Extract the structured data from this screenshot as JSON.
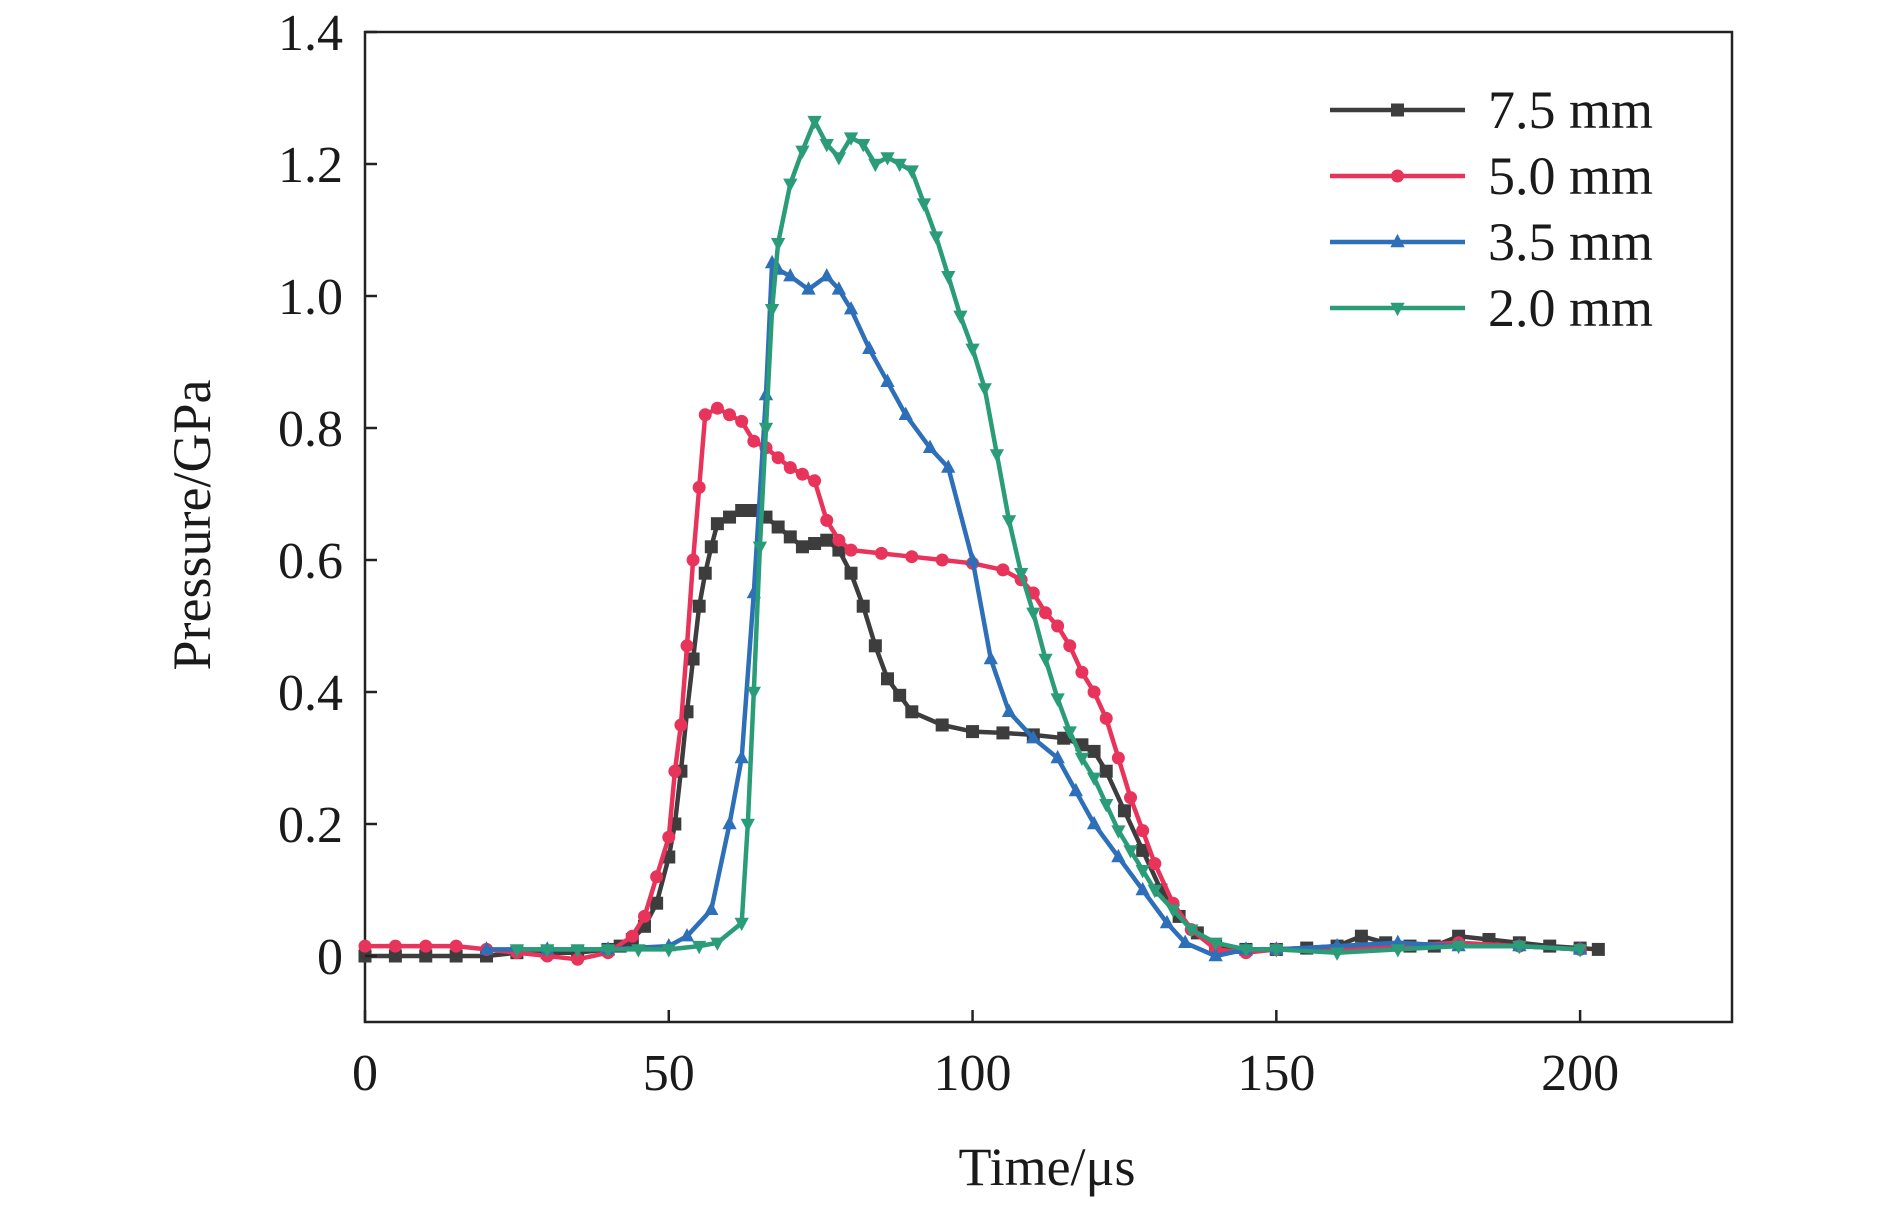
{
  "chart_data": {
    "type": "line",
    "title": "",
    "xlabel": "Time/μs",
    "ylabel": "Pressure/GPa",
    "xlim": [
      0,
      225
    ],
    "ylim": [
      -0.1,
      1.4
    ],
    "xticks": [
      0,
      50,
      100,
      150,
      200
    ],
    "yticks": [
      0,
      0.2,
      0.4,
      0.6,
      0.8,
      1.0,
      1.2,
      1.4
    ],
    "xtick_labels": [
      "0",
      "50",
      "100",
      "150",
      "200"
    ],
    "ytick_labels": [
      "0",
      "0.2",
      "0.4",
      "0.6",
      "0.8",
      "1.0",
      "1.2",
      "1.4"
    ],
    "grid": false,
    "legend_position": "top-right",
    "series": [
      {
        "name": "7.5 mm",
        "color": "#3d3d3d",
        "marker": "square",
        "x": [
          0,
          5,
          10,
          15,
          20,
          25,
          30,
          35,
          40,
          42,
          44,
          46,
          48,
          50,
          51,
          52,
          53,
          54,
          55,
          56,
          57,
          58,
          60,
          62,
          64,
          66,
          68,
          70,
          72,
          74,
          76,
          78,
          80,
          82,
          84,
          86,
          88,
          90,
          95,
          100,
          105,
          110,
          115,
          118,
          120,
          122,
          125,
          128,
          131,
          134,
          137,
          140,
          145,
          150,
          155,
          160,
          164,
          168,
          172,
          176,
          180,
          185,
          190,
          195,
          200,
          203
        ],
        "y": [
          0,
          0,
          0,
          0,
          0,
          0.005,
          0.005,
          0.005,
          0.01,
          0.015,
          0.025,
          0.045,
          0.08,
          0.15,
          0.2,
          0.28,
          0.37,
          0.45,
          0.53,
          0.58,
          0.62,
          0.655,
          0.665,
          0.675,
          0.675,
          0.665,
          0.65,
          0.635,
          0.62,
          0.625,
          0.63,
          0.615,
          0.58,
          0.53,
          0.47,
          0.42,
          0.395,
          0.37,
          0.35,
          0.34,
          0.338,
          0.335,
          0.33,
          0.32,
          0.31,
          0.28,
          0.22,
          0.16,
          0.1,
          0.06,
          0.035,
          0.015,
          0.01,
          0.01,
          0.012,
          0.015,
          0.03,
          0.02,
          0.015,
          0.015,
          0.03,
          0.025,
          0.02,
          0.015,
          0.012,
          0.01
        ]
      },
      {
        "name": "5.0 mm",
        "color": "#e8335a",
        "marker": "circle",
        "x": [
          0,
          5,
          10,
          15,
          20,
          25,
          30,
          35,
          40,
          44,
          46,
          48,
          50,
          51,
          52,
          53,
          54,
          55,
          56,
          58,
          60,
          62,
          64,
          66,
          68,
          70,
          72,
          74,
          76,
          78,
          80,
          85,
          90,
          95,
          100,
          105,
          108,
          110,
          112,
          114,
          116,
          118,
          120,
          122,
          124,
          126,
          128,
          130,
          133,
          136,
          140,
          145,
          150,
          160,
          170,
          180,
          190,
          200
        ],
        "y": [
          0.015,
          0.015,
          0.015,
          0.015,
          0.01,
          0.005,
          0.0,
          -0.005,
          0.005,
          0.03,
          0.06,
          0.12,
          0.18,
          0.28,
          0.35,
          0.47,
          0.6,
          0.71,
          0.82,
          0.83,
          0.82,
          0.81,
          0.78,
          0.77,
          0.755,
          0.74,
          0.73,
          0.72,
          0.66,
          0.63,
          0.615,
          0.61,
          0.605,
          0.6,
          0.595,
          0.585,
          0.57,
          0.55,
          0.52,
          0.5,
          0.47,
          0.43,
          0.4,
          0.36,
          0.3,
          0.24,
          0.19,
          0.14,
          0.08,
          0.04,
          0.01,
          0.005,
          0.01,
          0.01,
          0.015,
          0.02,
          0.015,
          0.01
        ]
      },
      {
        "name": "3.5 mm",
        "color": "#2d6fb8",
        "marker": "triangle-up",
        "x": [
          20,
          30,
          40,
          50,
          53,
          57,
          60,
          62,
          64,
          66,
          67,
          68,
          70,
          73,
          76,
          78,
          80,
          83,
          86,
          89,
          93,
          96,
          100,
          103,
          106,
          110,
          114,
          117,
          120,
          124,
          128,
          132,
          135,
          140,
          145,
          150,
          160,
          170,
          180,
          190,
          200
        ],
        "y": [
          0.01,
          0.01,
          0.01,
          0.015,
          0.03,
          0.07,
          0.2,
          0.3,
          0.55,
          0.85,
          1.05,
          1.04,
          1.03,
          1.01,
          1.03,
          1.01,
          0.98,
          0.92,
          0.87,
          0.82,
          0.77,
          0.74,
          0.6,
          0.45,
          0.37,
          0.33,
          0.3,
          0.25,
          0.2,
          0.15,
          0.1,
          0.05,
          0.02,
          0.0,
          0.01,
          0.01,
          0.015,
          0.02,
          0.015,
          0.015,
          0.01
        ]
      },
      {
        "name": "2.0 mm",
        "color": "#2a9d78",
        "marker": "triangle-down",
        "x": [
          25,
          30,
          35,
          40,
          45,
          50,
          55,
          58,
          62,
          63,
          64,
          65,
          66,
          67,
          68,
          70,
          72,
          74,
          76,
          78,
          80,
          82,
          84,
          86,
          88,
          90,
          92,
          94,
          96,
          98,
          100,
          102,
          104,
          106,
          108,
          110,
          112,
          114,
          116,
          118,
          120,
          122,
          124,
          126,
          128,
          130,
          133,
          136,
          140,
          145,
          150,
          160,
          170,
          180,
          190,
          200
        ],
        "y": [
          0.01,
          0.01,
          0.01,
          0.01,
          0.01,
          0.01,
          0.015,
          0.02,
          0.05,
          0.2,
          0.4,
          0.62,
          0.8,
          0.98,
          1.08,
          1.17,
          1.22,
          1.265,
          1.23,
          1.21,
          1.24,
          1.23,
          1.2,
          1.21,
          1.2,
          1.19,
          1.14,
          1.09,
          1.03,
          0.97,
          0.92,
          0.86,
          0.76,
          0.66,
          0.58,
          0.52,
          0.45,
          0.39,
          0.34,
          0.3,
          0.27,
          0.23,
          0.19,
          0.16,
          0.13,
          0.1,
          0.07,
          0.04,
          0.02,
          0.01,
          0.01,
          0.005,
          0.01,
          0.015,
          0.015,
          0.01
        ]
      }
    ]
  }
}
